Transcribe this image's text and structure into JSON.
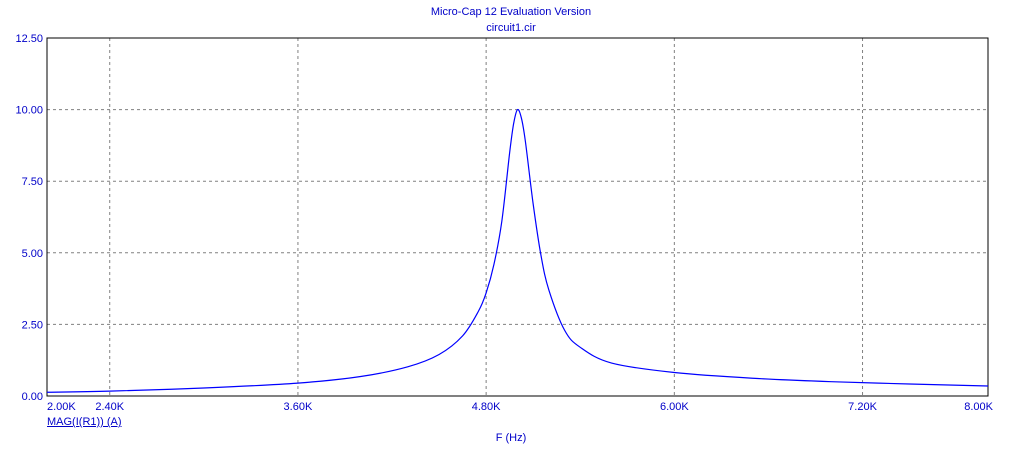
{
  "chart_data": {
    "type": "line",
    "title": "Micro-Cap 12 Evaluation Version",
    "subtitle": "circuit1.cir",
    "xlabel": "F (Hz)",
    "ylabel": "",
    "xlim": [
      2000,
      8000
    ],
    "ylim": [
      0,
      12.5
    ],
    "grid": true,
    "x_ticks": [
      2000,
      2400,
      3600,
      4800,
      6000,
      7200,
      8000
    ],
    "x_tick_labels": [
      "2.00K",
      "2.40K",
      "3.60K",
      "4.80K",
      "6.00K",
      "7.20K",
      "8.00K"
    ],
    "y_ticks": [
      0,
      2.5,
      5,
      7.5,
      10,
      12.5
    ],
    "y_tick_labels": [
      "0.00",
      "2.50",
      "5.00",
      "7.50",
      "10.00",
      "12.50"
    ],
    "series": [
      {
        "name": "MAG(I(R1)) (A)",
        "color": "#0000ff",
        "x": [
          2000,
          2400,
          3000,
          3600,
          4000,
          4300,
          4500,
          4650,
          4750,
          4800,
          4850,
          4900,
          4950,
          4975,
          5000,
          5025,
          5050,
          5100,
          5150,
          5200,
          5300,
          5400,
          5600,
          6000,
          6500,
          7000,
          7500,
          8000
        ],
        "values": [
          0.13,
          0.17,
          0.28,
          0.45,
          0.68,
          1.02,
          1.45,
          2.1,
          2.95,
          3.6,
          4.6,
          6.1,
          8.5,
          9.5,
          10.0,
          9.7,
          8.9,
          6.7,
          4.9,
          3.7,
          2.3,
          1.7,
          1.15,
          0.82,
          0.62,
          0.5,
          0.42,
          0.35
        ]
      }
    ]
  },
  "colors": {
    "axis": "#000000",
    "grid": "#808080",
    "text": "#0000c8",
    "trace": "#0000ff"
  }
}
